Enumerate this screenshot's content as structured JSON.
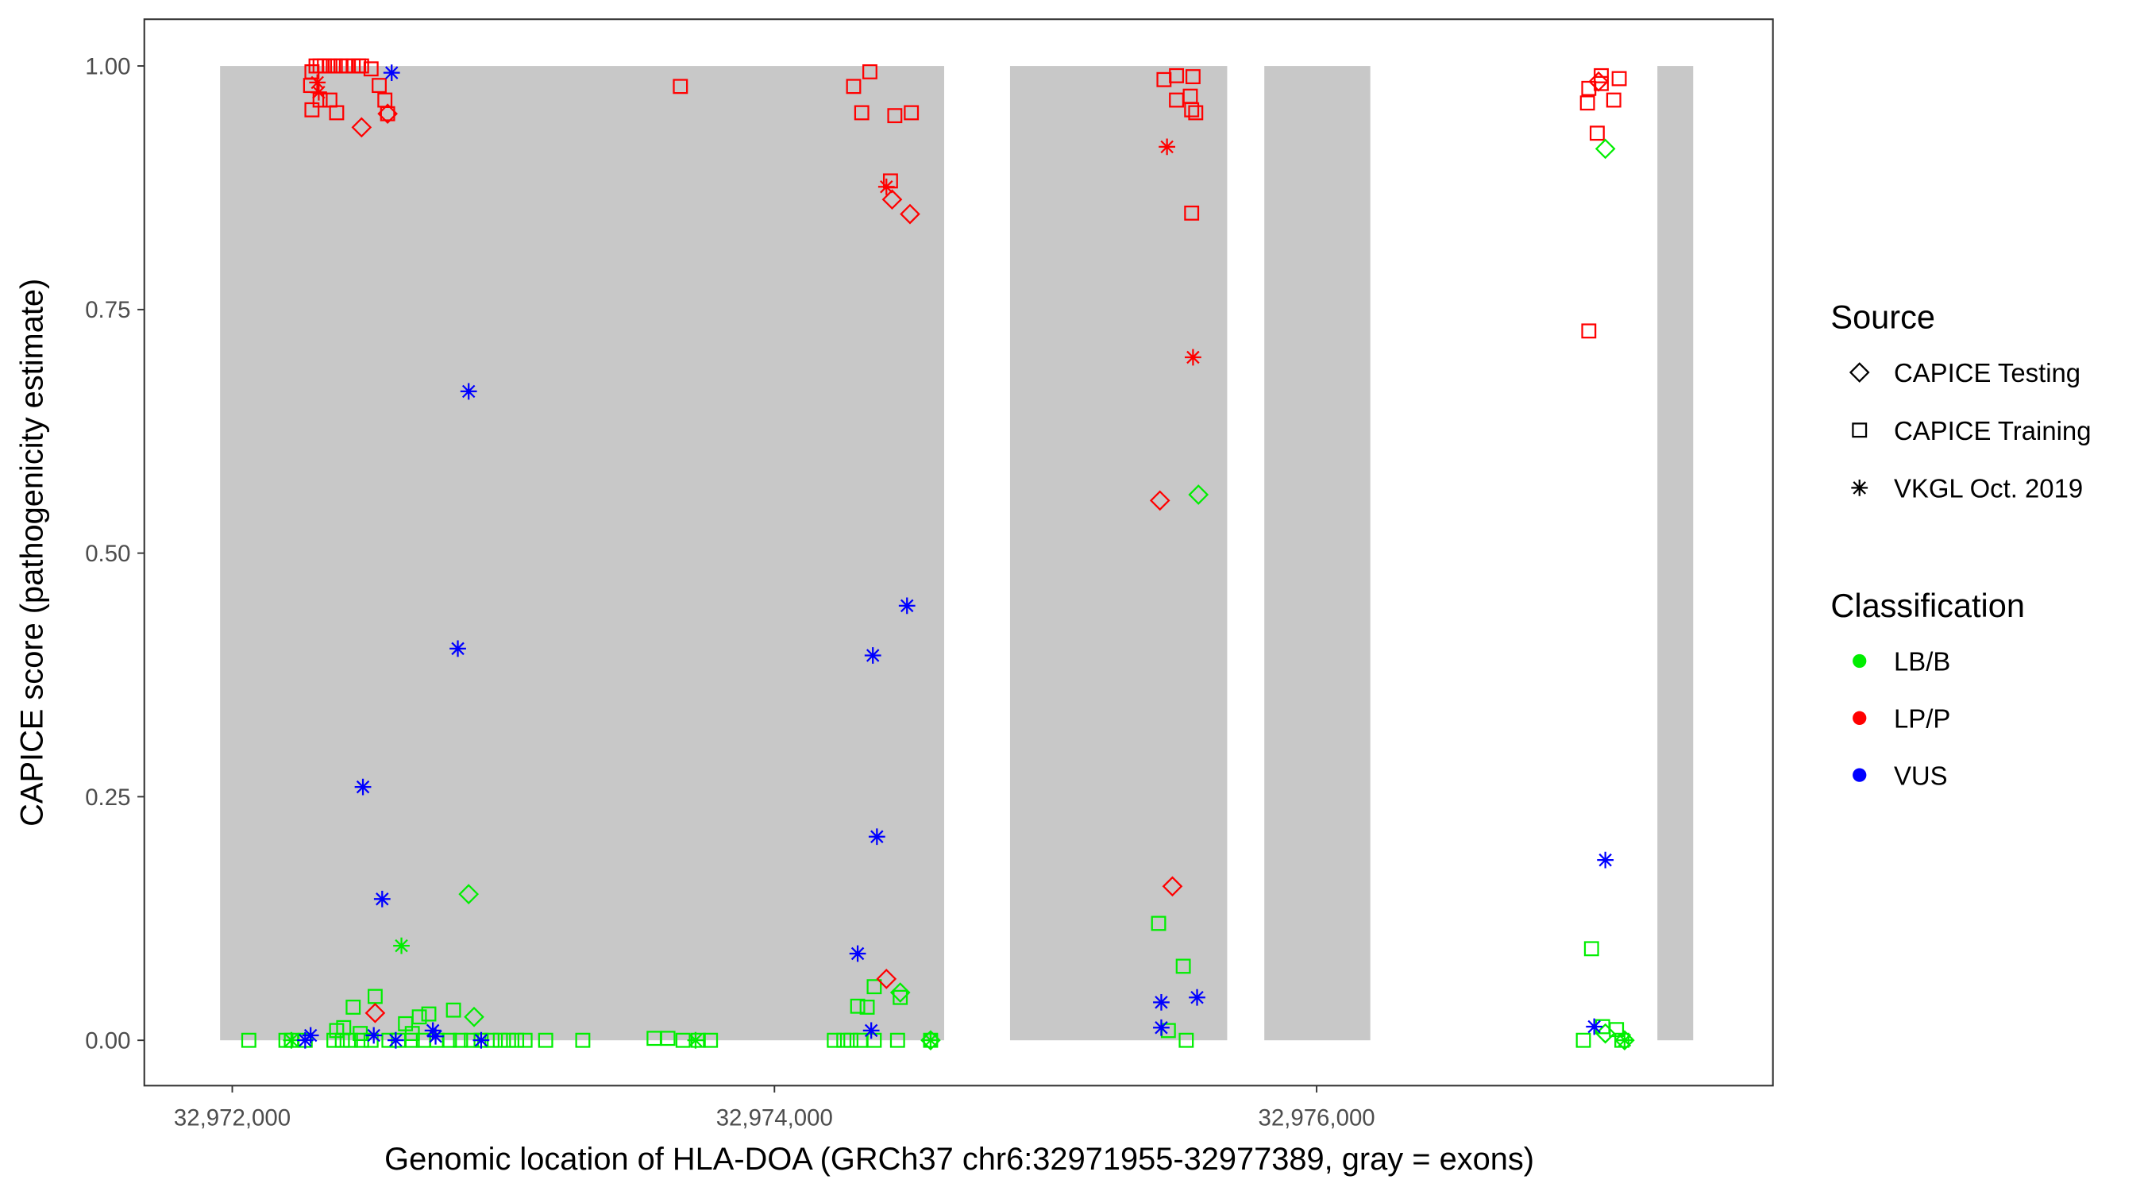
{
  "chart_data": {
    "type": "scatter",
    "xlabel": "Genomic location of HLA-DOA (GRCh37 chr6:32971955-32977389, gray = exons)",
    "ylabel": "CAPICE score (pathogenicity estimate)",
    "xlim": [
      32971700,
      32977700
    ],
    "ylim": [
      -0.045,
      1.045
    ],
    "x_ticks": [
      32972000,
      32974000,
      32976000
    ],
    "x_tick_labels": [
      "32,972,000",
      "32,974,000",
      "32,976,000"
    ],
    "y_ticks": [
      0,
      0.25,
      0.5,
      0.75,
      1.0
    ],
    "y_tick_labels": [
      "0.00",
      "0.25",
      "0.50",
      "0.75",
      "1.00"
    ],
    "grid": false,
    "exons": [
      [
        32971955,
        32974626
      ],
      [
        32974869,
        32975670
      ],
      [
        32975807,
        32976198
      ],
      [
        32977257,
        32977389
      ]
    ],
    "exon_color": "#c8c8c8",
    "legend_position": "right",
    "legend_source": {
      "title": "Source",
      "entries": [
        {
          "label": "CAPICE Testing",
          "shape": "diamond"
        },
        {
          "label": "CAPICE Training",
          "shape": "square"
        },
        {
          "label": "VKGL Oct. 2019",
          "shape": "asterisk"
        }
      ]
    },
    "legend_classification": {
      "title": "Classification",
      "entries": [
        {
          "label": "LB/B",
          "color": "#00ee00"
        },
        {
          "label": "LP/P",
          "color": "#ff0000"
        },
        {
          "label": "VUS",
          "color": "#0000ff"
        }
      ]
    },
    "point_fields": [
      "position",
      "score",
      "source_index",
      "classification_index"
    ],
    "points": [
      [
        32972294,
        0.994,
        1,
        1
      ],
      [
        32972309,
        1.0,
        1,
        1
      ],
      [
        32972324,
        1.0,
        1,
        1
      ],
      [
        32972340,
        1.0,
        1,
        1
      ],
      [
        32972360,
        1.0,
        1,
        1
      ],
      [
        32972380,
        1.0,
        1,
        1
      ],
      [
        32972401,
        1.0,
        1,
        1
      ],
      [
        32972421,
        1.0,
        1,
        1
      ],
      [
        32972446,
        1.0,
        1,
        1
      ],
      [
        32972466,
        1.0,
        1,
        1
      ],
      [
        32972477,
        1.0,
        1,
        1
      ],
      [
        32972512,
        0.997,
        1,
        1
      ],
      [
        32972289,
        0.98,
        1,
        1
      ],
      [
        32972324,
        0.965,
        1,
        1
      ],
      [
        32972360,
        0.965,
        1,
        1
      ],
      [
        32972294,
        0.955,
        1,
        1
      ],
      [
        32972385,
        0.952,
        1,
        1
      ],
      [
        32972542,
        0.98,
        1,
        1
      ],
      [
        32972563,
        0.965,
        1,
        1
      ],
      [
        32972573,
        0.951,
        1,
        1
      ],
      [
        32972477,
        0.937,
        0,
        1
      ],
      [
        32972573,
        0.951,
        0,
        1
      ],
      [
        32972319,
        0.973,
        2,
        1
      ],
      [
        32972314,
        0.983,
        2,
        1
      ],
      [
        32972588,
        0.993,
        2,
        2
      ],
      [
        32973653,
        0.979,
        1,
        1
      ],
      [
        32972872,
        0.666,
        2,
        2
      ],
      [
        32972832,
        0.402,
        2,
        2
      ],
      [
        32972482,
        0.26,
        2,
        2
      ],
      [
        32972553,
        0.145,
        2,
        2
      ],
      [
        32972624,
        0.097,
        2,
        0
      ],
      [
        32972872,
        0.15,
        0,
        0
      ],
      [
        32972446,
        0.034,
        1,
        0
      ],
      [
        32972527,
        0.045,
        1,
        0
      ],
      [
        32972690,
        0.024,
        1,
        0
      ],
      [
        32972725,
        0.027,
        1,
        0
      ],
      [
        32972816,
        0.031,
        1,
        0
      ],
      [
        32972639,
        0.017,
        1,
        0
      ],
      [
        32972892,
        0.024,
        0,
        0
      ],
      [
        32972385,
        0.01,
        1,
        0
      ],
      [
        32972411,
        0.013,
        1,
        0
      ],
      [
        32972472,
        0.007,
        1,
        0
      ],
      [
        32972664,
        0.007,
        1,
        0
      ],
      [
        32972061,
        0,
        1,
        0
      ],
      [
        32972198,
        0,
        1,
        0
      ],
      [
        32972218,
        0,
        1,
        0
      ],
      [
        32972269,
        0,
        1,
        0
      ],
      [
        32972375,
        0,
        1,
        0
      ],
      [
        32972406,
        0,
        1,
        0
      ],
      [
        32972436,
        0,
        1,
        0
      ],
      [
        32972477,
        0,
        1,
        0
      ],
      [
        32972512,
        0,
        1,
        0
      ],
      [
        32972578,
        0,
        1,
        0
      ],
      [
        32972613,
        0,
        1,
        0
      ],
      [
        32972664,
        0,
        1,
        0
      ],
      [
        32972705,
        0,
        1,
        0
      ],
      [
        32972755,
        0,
        1,
        0
      ],
      [
        32972801,
        0,
        1,
        0
      ],
      [
        32972842,
        0,
        1,
        0
      ],
      [
        32972882,
        0,
        1,
        0
      ],
      [
        32972918,
        0,
        1,
        0
      ],
      [
        32972958,
        0,
        1,
        0
      ],
      [
        32972989,
        0,
        1,
        0
      ],
      [
        32973019,
        0,
        1,
        0
      ],
      [
        32973049,
        0,
        1,
        0
      ],
      [
        32973080,
        0,
        1,
        0
      ],
      [
        32973156,
        0,
        1,
        0
      ],
      [
        32973293,
        0,
        1,
        0
      ],
      [
        32973556,
        0.002,
        1,
        0
      ],
      [
        32973607,
        0.002,
        1,
        0
      ],
      [
        32973663,
        0,
        1,
        0
      ],
      [
        32973719,
        0,
        1,
        0
      ],
      [
        32973764,
        0,
        1,
        0
      ],
      [
        32972218,
        0,
        2,
        0
      ],
      [
        32973709,
        0,
        2,
        0
      ],
      [
        32972527,
        0.028,
        0,
        1
      ],
      [
        32972269,
        0,
        2,
        2
      ],
      [
        32972289,
        0.005,
        2,
        2
      ],
      [
        32972522,
        0.005,
        2,
        2
      ],
      [
        32972603,
        0,
        2,
        2
      ],
      [
        32972740,
        0.01,
        2,
        2
      ],
      [
        32972750,
        0.004,
        2,
        2
      ],
      [
        32972918,
        0,
        2,
        2
      ],
      [
        32974292,
        0.979,
        1,
        1
      ],
      [
        32974352,
        0.994,
        1,
        1
      ],
      [
        32974322,
        0.952,
        1,
        1
      ],
      [
        32974444,
        0.949,
        1,
        1
      ],
      [
        32974505,
        0.952,
        1,
        1
      ],
      [
        32974428,
        0.882,
        1,
        1
      ],
      [
        32974413,
        0.876,
        2,
        1
      ],
      [
        32974434,
        0.863,
        0,
        1
      ],
      [
        32974500,
        0.848,
        0,
        1
      ],
      [
        32974489,
        0.446,
        2,
        2
      ],
      [
        32974363,
        0.395,
        2,
        2
      ],
      [
        32974378,
        0.209,
        2,
        2
      ],
      [
        32974307,
        0.089,
        2,
        2
      ],
      [
        32974368,
        0.055,
        1,
        0
      ],
      [
        32974307,
        0.035,
        1,
        0
      ],
      [
        32974342,
        0.034,
        1,
        0
      ],
      [
        32974464,
        0.044,
        1,
        0
      ],
      [
        32974464,
        0.049,
        0,
        0
      ],
      [
        32974413,
        0.063,
        0,
        1
      ],
      [
        32974221,
        0,
        1,
        0
      ],
      [
        32974256,
        0,
        1,
        0
      ],
      [
        32974282,
        0,
        1,
        0
      ],
      [
        32974317,
        0,
        1,
        0
      ],
      [
        32974368,
        0,
        1,
        0
      ],
      [
        32974454,
        0,
        1,
        0
      ],
      [
        32974576,
        0,
        1,
        0
      ],
      [
        32974576,
        0,
        2,
        0
      ],
      [
        32974576,
        0,
        0,
        0
      ],
      [
        32974357,
        0.01,
        2,
        2
      ],
      [
        32975437,
        0.986,
        1,
        1
      ],
      [
        32975483,
        0.99,
        1,
        1
      ],
      [
        32975544,
        0.989,
        1,
        1
      ],
      [
        32975483,
        0.965,
        1,
        1
      ],
      [
        32975534,
        0.969,
        1,
        1
      ],
      [
        32975539,
        0.955,
        1,
        1
      ],
      [
        32975554,
        0.952,
        1,
        1
      ],
      [
        32975539,
        0.849,
        1,
        1
      ],
      [
        32975448,
        0.917,
        2,
        1
      ],
      [
        32975544,
        0.701,
        2,
        1
      ],
      [
        32975422,
        0.554,
        0,
        1
      ],
      [
        32975468,
        0.158,
        0,
        1
      ],
      [
        32975564,
        0.56,
        0,
        0
      ],
      [
        32975417,
        0.12,
        1,
        0
      ],
      [
        32975508,
        0.076,
        1,
        0
      ],
      [
        32975519,
        0,
        1,
        0
      ],
      [
        32975453,
        0.01,
        1,
        0
      ],
      [
        32975427,
        0.039,
        2,
        2
      ],
      [
        32975559,
        0.044,
        2,
        2
      ],
      [
        32975427,
        0.013,
        2,
        2
      ],
      [
        32977050,
        0.99,
        1,
        1
      ],
      [
        32977116,
        0.987,
        1,
        1
      ],
      [
        32977050,
        0.982,
        1,
        1
      ],
      [
        32977004,
        0.977,
        1,
        1
      ],
      [
        32976999,
        0.962,
        1,
        1
      ],
      [
        32977096,
        0.965,
        1,
        1
      ],
      [
        32977035,
        0.931,
        1,
        1
      ],
      [
        32977004,
        0.728,
        1,
        1
      ],
      [
        32977040,
        0.984,
        0,
        1
      ],
      [
        32977065,
        0.915,
        0,
        0
      ],
      [
        32977065,
        0.185,
        2,
        2
      ],
      [
        32977014,
        0.094,
        1,
        0
      ],
      [
        32976984,
        0,
        1,
        0
      ],
      [
        32977055,
        0.014,
        1,
        0
      ],
      [
        32977106,
        0.011,
        1,
        0
      ],
      [
        32977126,
        0,
        1,
        0
      ],
      [
        32977065,
        0.007,
        0,
        0
      ],
      [
        32977136,
        0,
        0,
        0
      ],
      [
        32977136,
        0,
        2,
        0
      ],
      [
        32977024,
        0.014,
        2,
        2
      ]
    ]
  }
}
